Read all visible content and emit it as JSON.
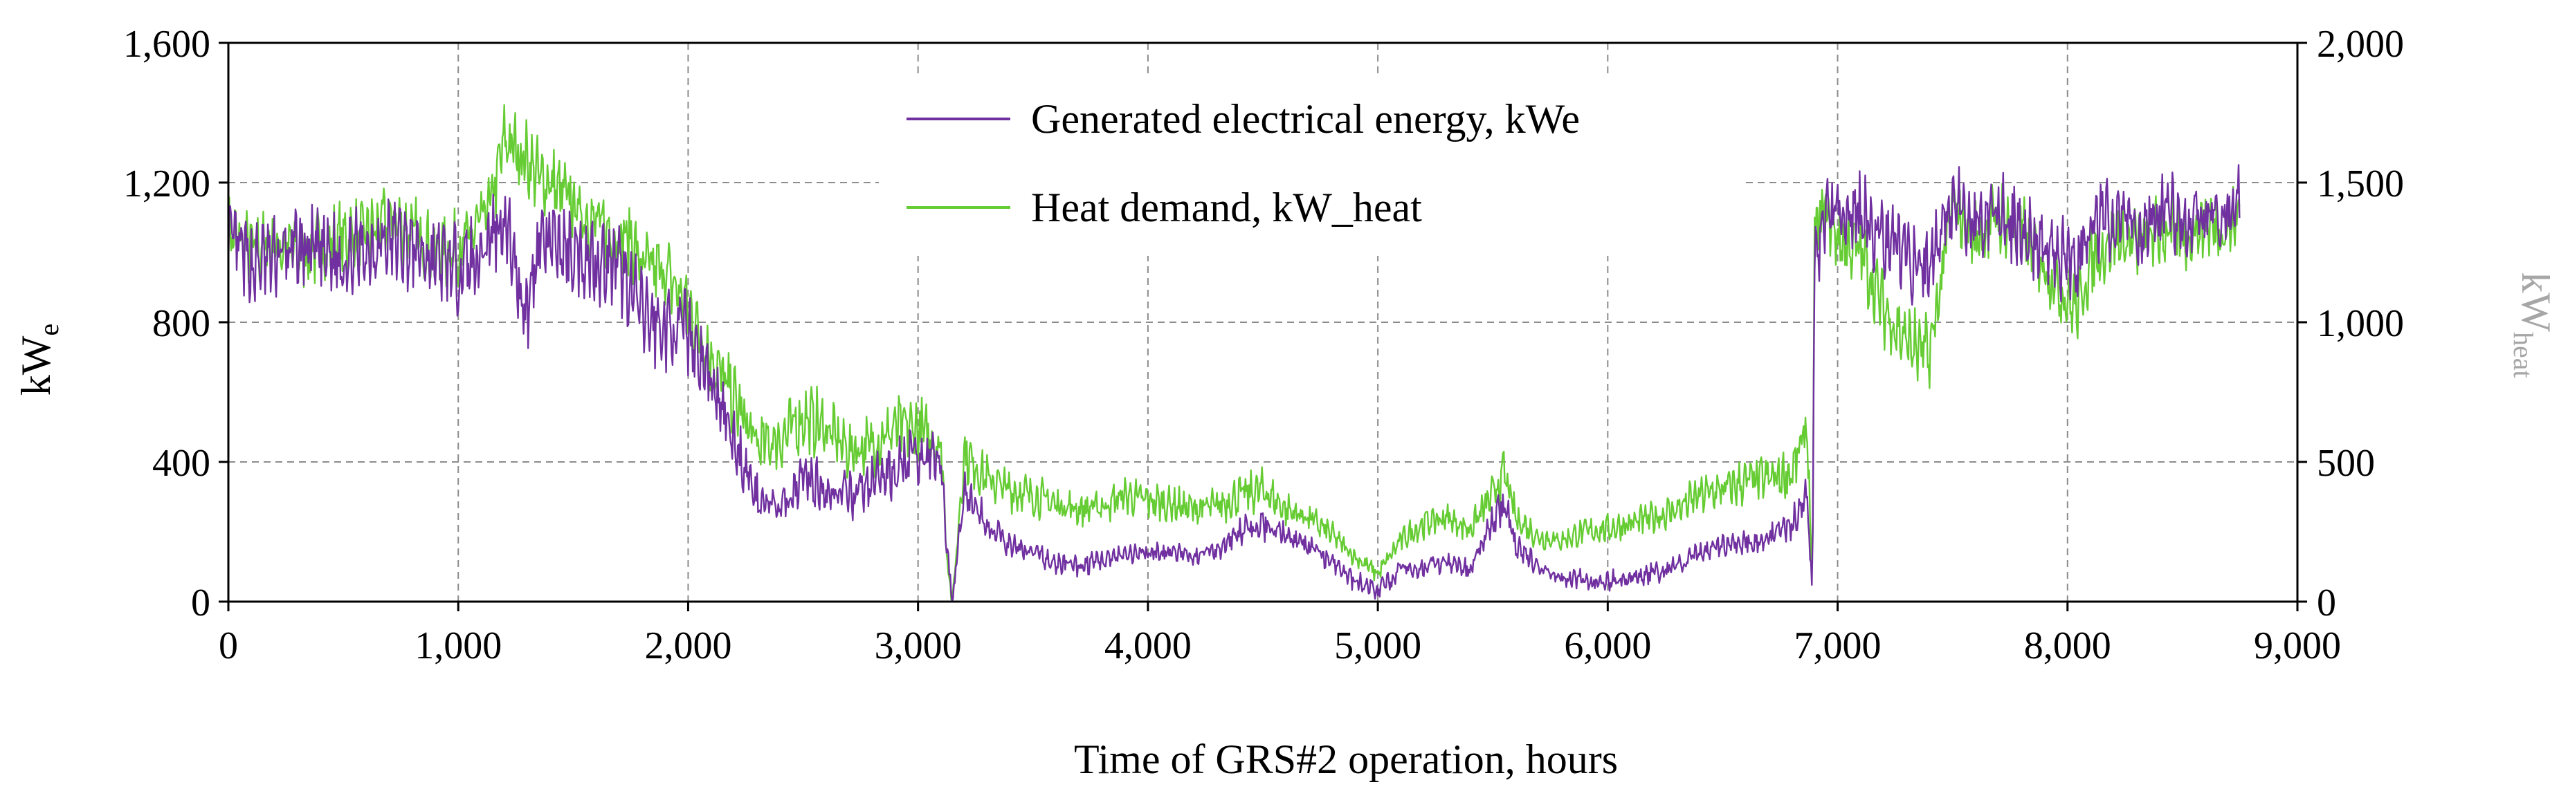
{
  "chart_data": {
    "type": "line",
    "title": "",
    "xlabel": "Time of GRS#2 operation, hours",
    "ylabel_left": {
      "main": "kW",
      "sub": "e"
    },
    "ylabel_right": {
      "main": "kW",
      "sub": "heat"
    },
    "xlim": [
      0,
      9000
    ],
    "ylim_left": [
      0,
      1600
    ],
    "ylim_right": [
      0,
      2000
    ],
    "x_ticks": [
      0,
      1000,
      2000,
      3000,
      4000,
      5000,
      6000,
      7000,
      8000,
      9000
    ],
    "x_tick_labels": [
      "0",
      "1,000",
      "2,000",
      "3,000",
      "4,000",
      "5,000",
      "6,000",
      "7,000",
      "8,000",
      "9,000"
    ],
    "y_left_ticks": [
      0,
      400,
      800,
      1200,
      1600
    ],
    "y_left_tick_labels": [
      "0",
      "400",
      "800",
      "1,200",
      "1,600"
    ],
    "y_right_ticks": [
      0,
      500,
      1000,
      1500,
      2000
    ],
    "y_right_tick_labels": [
      "0",
      "500",
      "1,000",
      "1,500",
      "2,000"
    ],
    "grid": true,
    "legend_position": "top-center",
    "series": [
      {
        "name": "Generated electrical energy, kWe",
        "axis": "left",
        "color": "#7030a0",
        "x": [
          0,
          100,
          200,
          300,
          400,
          500,
          600,
          700,
          800,
          900,
          1000,
          1100,
          1150,
          1200,
          1250,
          1300,
          1350,
          1400,
          1500,
          1600,
          1700,
          1750,
          1800,
          1900,
          2000,
          2100,
          2200,
          2300,
          2400,
          2500,
          2600,
          2700,
          2800,
          2900,
          3000,
          3100,
          3130,
          3150,
          3200,
          3300,
          3400,
          3500,
          3600,
          3700,
          3800,
          3900,
          4000,
          4100,
          4200,
          4300,
          4400,
          4500,
          4600,
          4700,
          4800,
          4900,
          5000,
          5100,
          5200,
          5300,
          5400,
          5500,
          5550,
          5600,
          5700,
          5800,
          5900,
          6000,
          6100,
          6200,
          6300,
          6400,
          6500,
          6600,
          6700,
          6800,
          6870,
          6880,
          6890,
          6900,
          6950,
          7000,
          7100,
          7200,
          7300,
          7400,
          7500,
          7600,
          7700,
          7800,
          7900,
          8000,
          8050,
          8100,
          8200,
          8300,
          8400,
          8500,
          8600,
          8700,
          8750
        ],
        "values": [
          1040,
          960,
          990,
          1010,
          1000,
          980,
          1010,
          1040,
          1010,
          980,
          950,
          1000,
          1060,
          1100,
          950,
          820,
          1040,
          1020,
          1000,
          980,
          950,
          900,
          820,
          780,
          780,
          620,
          460,
          300,
          260,
          360,
          320,
          300,
          340,
          380,
          420,
          400,
          120,
          0,
          320,
          220,
          160,
          140,
          110,
          100,
          120,
          130,
          140,
          140,
          130,
          150,
          200,
          220,
          190,
          160,
          110,
          60,
          30,
          90,
          100,
          110,
          90,
          230,
          280,
          160,
          100,
          70,
          60,
          60,
          70,
          80,
          100,
          140,
          160,
          170,
          180,
          220,
          320,
          120,
          30,
          1000,
          1080,
          1130,
          1100,
          1050,
          990,
          960,
          1140,
          1060,
          1110,
          1060,
          1010,
          960,
          990,
          1080,
          1110,
          1050,
          1120,
          1090,
          1120,
          1110,
          1140
        ]
      },
      {
        "name": "Heat demand, kW_heat",
        "axis": "right",
        "color": "#66cc33",
        "x": [
          0,
          100,
          200,
          300,
          400,
          500,
          600,
          700,
          800,
          900,
          1000,
          1100,
          1150,
          1200,
          1250,
          1300,
          1350,
          1400,
          1500,
          1600,
          1700,
          1750,
          1800,
          1900,
          2000,
          2100,
          2200,
          2300,
          2400,
          2500,
          2600,
          2700,
          2800,
          2900,
          3000,
          3100,
          3130,
          3150,
          3200,
          3300,
          3400,
          3500,
          3600,
          3700,
          3800,
          3900,
          4000,
          4100,
          4200,
          4300,
          4400,
          4500,
          4600,
          4700,
          4800,
          4900,
          5000,
          5100,
          5200,
          5300,
          5400,
          5500,
          5550,
          5600,
          5700,
          5800,
          5900,
          6000,
          6100,
          6200,
          6300,
          6400,
          6500,
          6600,
          6700,
          6800,
          6870,
          6880,
          6890,
          6900,
          6950,
          7000,
          7100,
          7200,
          7300,
          7400,
          7500,
          7600,
          7700,
          7800,
          7900,
          8000,
          8050,
          8100,
          8200,
          8300,
          8400,
          8500,
          8600,
          8700,
          8750
        ],
        "values": [
          1320,
          1260,
          1280,
          1250,
          1270,
          1300,
          1310,
          1370,
          1320,
          1250,
          1260,
          1350,
          1450,
          1650,
          1620,
          1580,
          1520,
          1500,
          1420,
          1350,
          1300,
          1300,
          1200,
          1180,
          1050,
          880,
          720,
          560,
          580,
          660,
          620,
          540,
          560,
          620,
          620,
          560,
          120,
          0,
          530,
          440,
          400,
          380,
          350,
          330,
          340,
          380,
          360,
          350,
          330,
          340,
          380,
          400,
          330,
          300,
          240,
          160,
          100,
          220,
          280,
          300,
          260,
          380,
          460,
          300,
          230,
          220,
          250,
          260,
          280,
          300,
          330,
          380,
          400,
          430,
          440,
          460,
          620,
          300,
          40,
          1320,
          1400,
          1300,
          1250,
          1050,
          930,
          880,
          1420,
          1300,
          1380,
          1330,
          1200,
          1080,
          1050,
          1220,
          1300,
          1280,
          1330,
          1300,
          1350,
          1330,
          1380
        ]
      }
    ]
  }
}
